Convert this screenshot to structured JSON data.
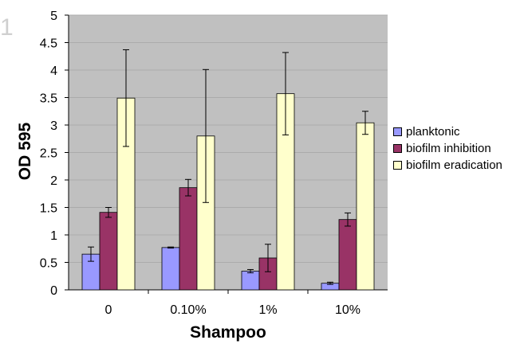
{
  "corner_mark": "1",
  "chart_data": {
    "type": "bar",
    "xlabel": "Shampoo",
    "ylabel": "OD 595",
    "categories": [
      "0",
      "0.10%",
      "1%",
      "10%"
    ],
    "ylim": [
      0,
      5
    ],
    "yticks": [
      "0",
      "0.5",
      "1",
      "1.5",
      "2",
      "2.5",
      "3",
      "3.5",
      "4",
      "4.5",
      "5"
    ],
    "grid": true,
    "legend_position": "right",
    "series": [
      {
        "name": "planktonic",
        "color": "#9999ff",
        "values": [
          0.65,
          0.77,
          0.34,
          0.12
        ],
        "errors": [
          0.13,
          0.01,
          0.03,
          0.02
        ]
      },
      {
        "name": "biofilm inhibition",
        "color": "#993366",
        "values": [
          1.41,
          1.86,
          0.58,
          1.28
        ],
        "errors": [
          0.09,
          0.15,
          0.25,
          0.12
        ]
      },
      {
        "name": "biofilm eradication",
        "color": "#ffffcc",
        "values": [
          3.49,
          2.8,
          3.57,
          3.04
        ],
        "errors": [
          0.88,
          1.21,
          0.75,
          0.21
        ]
      }
    ]
  }
}
